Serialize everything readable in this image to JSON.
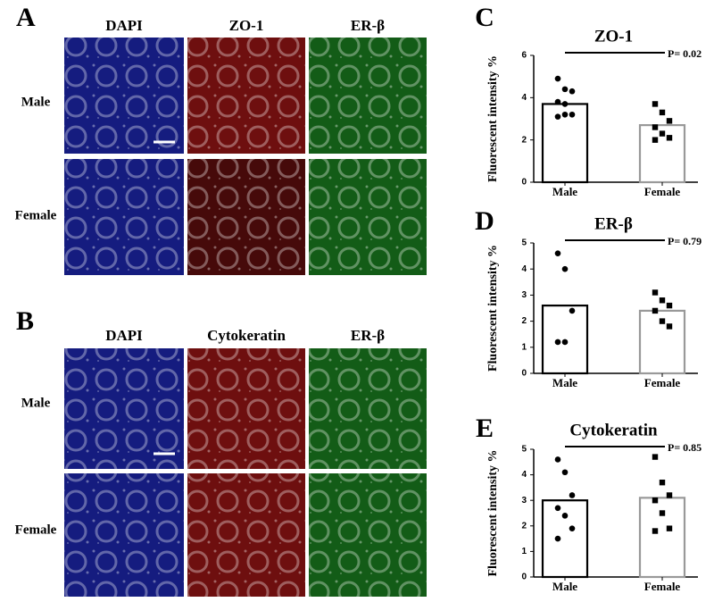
{
  "panels": [
    {
      "label": "A",
      "columns": [
        "DAPI",
        "ZO-1",
        "ER-β"
      ],
      "rows": [
        "Male",
        "Female"
      ]
    },
    {
      "label": "B",
      "columns": [
        "DAPI",
        "Cytokeratin",
        "ER-β"
      ],
      "rows": [
        "Male",
        "Female"
      ]
    }
  ],
  "chart_data": [
    {
      "type": "bar",
      "panel_label": "C",
      "title": "ZO-1",
      "ylabel": "Fluorescent intensity %",
      "annotation": "P= 0.02",
      "categories": [
        "Male",
        "Female"
      ],
      "values": [
        3.7,
        2.7
      ],
      "colors": [
        "#000000",
        "#999999"
      ],
      "points": [
        [
          4.9,
          4.4,
          4.3,
          3.8,
          3.7,
          3.2,
          3.1,
          3.2
        ],
        [
          3.7,
          3.3,
          2.9,
          2.6,
          2.3,
          2.1,
          2.0
        ]
      ],
      "ylim": [
        0,
        6
      ],
      "yticks": [
        0,
        2,
        4,
        6
      ]
    },
    {
      "type": "bar",
      "panel_label": "D",
      "title": "ER-β",
      "ylabel": "Fluorescent intensity %",
      "annotation": "P= 0.79",
      "categories": [
        "Male",
        "Female"
      ],
      "values": [
        2.6,
        2.4
      ],
      "colors": [
        "#000000",
        "#999999"
      ],
      "points": [
        [
          4.6,
          4.0,
          2.4,
          1.2,
          1.2
        ],
        [
          3.1,
          2.8,
          2.6,
          2.4,
          2.0,
          1.8
        ]
      ],
      "ylim": [
        0,
        5
      ],
      "yticks": [
        0,
        1,
        2,
        3,
        4,
        5
      ]
    },
    {
      "type": "bar",
      "panel_label": "E",
      "title": "Cytokeratin",
      "ylabel": "Fluorescent intensity %",
      "annotation": "P= 0.85",
      "categories": [
        "Male",
        "Female"
      ],
      "values": [
        3.0,
        3.1
      ],
      "colors": [
        "#000000",
        "#999999"
      ],
      "points": [
        [
          4.6,
          4.1,
          3.2,
          2.7,
          2.4,
          1.9,
          1.5
        ],
        [
          4.7,
          3.7,
          3.2,
          3.0,
          2.5,
          1.9,
          1.8
        ]
      ],
      "ylim": [
        0,
        5
      ],
      "yticks": [
        0,
        1,
        2,
        3,
        4,
        5
      ]
    }
  ]
}
